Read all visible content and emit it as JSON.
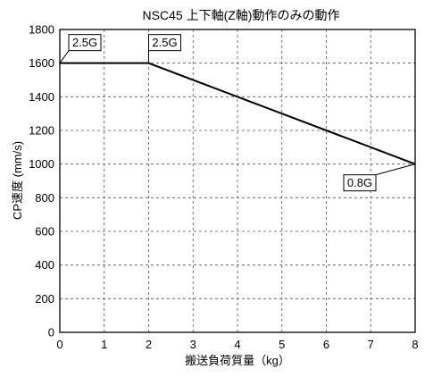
{
  "chart_data": {
    "type": "line",
    "title": "NSC45 上下軸(Z軸)動作のみの動作",
    "xlabel": "搬送負荷質量（kg）",
    "ylabel": "CP速度 (mm/s)",
    "xlim": [
      0,
      8
    ],
    "ylim": [
      0,
      1800
    ],
    "xticks": [
      0,
      1,
      2,
      3,
      4,
      5,
      6,
      7,
      8
    ],
    "yticks": [
      0,
      200,
      400,
      600,
      800,
      1000,
      1200,
      1400,
      1600,
      1800
    ],
    "grid": true,
    "grid_style": "dashed",
    "series": [
      {
        "x": [
          0,
          2,
          8
        ],
        "y": [
          1600,
          1600,
          1000
        ],
        "color": "#000000"
      }
    ],
    "annotations": [
      {
        "text": "2.5G",
        "x": 0,
        "y": 1600
      },
      {
        "text": "2.5G",
        "x": 2,
        "y": 1600
      },
      {
        "text": "0.8G",
        "x": 8,
        "y": 1000
      }
    ]
  }
}
